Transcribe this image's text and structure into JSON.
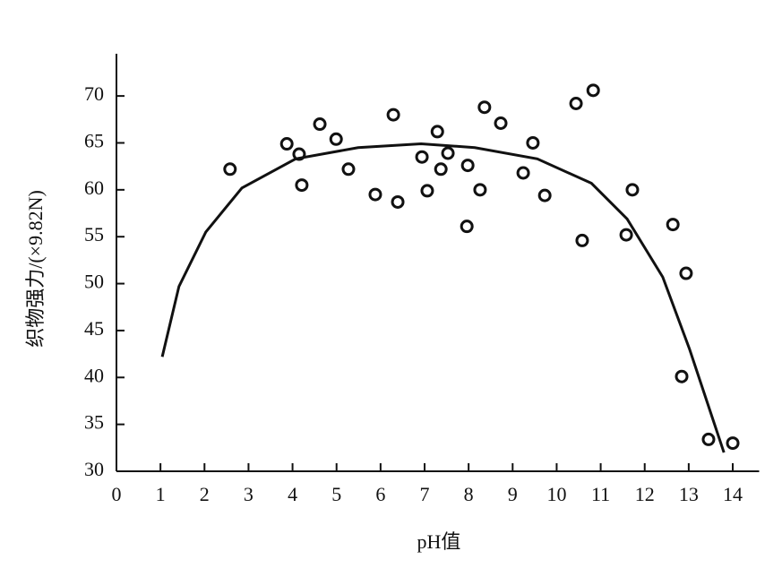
{
  "chart_data": {
    "type": "scatter",
    "x_label": "pH值",
    "y_label": "织物强力/(×9.82N)",
    "xlim": [
      0,
      14.6
    ],
    "ylim": [
      30,
      74.5
    ],
    "xticks": [
      0,
      1,
      2,
      3,
      4,
      5,
      6,
      7,
      8,
      9,
      10,
      11,
      12,
      13,
      14
    ],
    "yticks": [
      30,
      35,
      40,
      45,
      50,
      55,
      60,
      65,
      70
    ],
    "color": "#111111",
    "points": {
      "x": [
        2.58,
        3.87,
        4.15,
        4.21,
        4.62,
        4.99,
        5.27,
        5.88,
        6.29,
        6.39,
        6.94,
        7.06,
        7.29,
        7.37,
        7.53,
        7.98,
        7.96,
        8.26,
        8.36,
        8.73,
        9.24,
        9.46,
        9.73,
        10.44,
        10.58,
        10.83,
        11.58,
        11.72,
        12.64,
        12.84,
        12.94,
        13.45,
        14.0
      ],
      "y": [
        62.2,
        64.9,
        63.8,
        60.5,
        67.0,
        65.4,
        62.2,
        59.5,
        68.0,
        58.7,
        63.5,
        59.9,
        66.2,
        62.2,
        63.9,
        62.6,
        56.1,
        60.0,
        68.8,
        67.1,
        61.8,
        65.0,
        59.4,
        69.2,
        54.6,
        70.6,
        55.2,
        60.0,
        56.3,
        40.1,
        51.1,
        33.4,
        33.0
      ]
    },
    "curve": {
      "x": [
        1.04,
        1.42,
        2.03,
        2.85,
        4.07,
        5.49,
        6.92,
        8.14,
        9.56,
        10.79,
        11.6,
        12.41,
        13.02,
        13.53,
        13.8
      ],
      "y": [
        42.2,
        49.7,
        55.5,
        60.2,
        63.3,
        64.5,
        64.9,
        64.5,
        63.3,
        60.7,
        56.9,
        50.7,
        43.0,
        35.8,
        32.0
      ]
    }
  }
}
